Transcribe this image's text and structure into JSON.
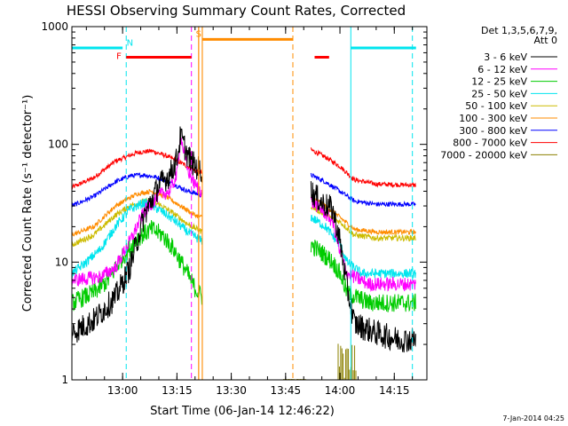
{
  "chart_data": {
    "type": "line",
    "title": "HESSI Observing Summary Count Rates, Corrected",
    "xlabel": "Start Time (06-Jan-14 12:46:22)",
    "ylabel": "Corrected Count Rate (s⁻¹ detector⁻¹)",
    "x_unit": "minutes",
    "x_range": [
      "12:46",
      "14:24"
    ],
    "x_ticks": [
      "13:00",
      "13:15",
      "13:30",
      "13:45",
      "14:00",
      "14:15"
    ],
    "y_scale": "log",
    "ylim": [
      1,
      1000
    ],
    "y_ticks": [
      "1",
      "10",
      "100",
      "1000"
    ],
    "legend_header": [
      "Det 1,3,5,6,7,9,",
      "Att 0"
    ],
    "legend_position": "right",
    "timestamp": "7-Jan-2014 04:25",
    "data_gap": [
      "13:22",
      "13:52"
    ],
    "dashed_markers": [
      {
        "time": "13:01",
        "color": "#00e5ee"
      },
      {
        "time": "13:19",
        "color": "#ff00ff"
      },
      {
        "time": "13:47",
        "color": "#ff8c00"
      },
      {
        "time": "14:20",
        "color": "#00e5ee"
      }
    ],
    "solid_markers": [
      {
        "time": "12:46",
        "color": "#00e5ee"
      },
      {
        "time": "13:21",
        "color": "#ff8c00"
      },
      {
        "time": "13:22",
        "color": "#ff8c00"
      },
      {
        "time": "14:03",
        "color": "#00e5ee"
      }
    ],
    "state_bars": [
      {
        "label": "",
        "color": "#00e5ee",
        "y": 660,
        "segments": [
          [
            "12:46",
            "13:00"
          ],
          [
            "14:03",
            "14:21"
          ]
        ]
      },
      {
        "label": "N",
        "label_color": "#00e5ee",
        "label_time": "13:02",
        "label_y": 690,
        "color": "",
        "y": 0,
        "segments": []
      },
      {
        "label": "F",
        "label_color": "#ff0000",
        "label_time": "12:59",
        "label_y": 530,
        "color": "#ff0000",
        "y": 550,
        "segments": [
          [
            "13:01",
            "13:19"
          ],
          [
            "13:53",
            "13:57"
          ]
        ]
      },
      {
        "label": "S",
        "label_color": "#ff8c00",
        "label_time": "13:21",
        "label_y": 820,
        "color": "#ff8c00",
        "y": 780,
        "segments": [
          [
            "13:22",
            "13:47"
          ]
        ]
      }
    ],
    "series": [
      {
        "name": "3 - 6 keV",
        "color": "#000000",
        "noise": 0.22,
        "points": [
          [
            "12:46",
            2.5
          ],
          [
            "12:52",
            3.2
          ],
          [
            "12:58",
            5
          ],
          [
            "13:02",
            9
          ],
          [
            "13:06",
            25
          ],
          [
            "13:10",
            45
          ],
          [
            "13:13",
            55
          ],
          [
            "13:15",
            75
          ],
          [
            "13:16",
            118
          ],
          [
            "13:18",
            80
          ],
          [
            "13:20",
            65
          ],
          [
            "13:22",
            60
          ]
        ],
        "points2": [
          [
            "13:52",
            40
          ],
          [
            "13:55",
            32
          ],
          [
            "13:58",
            28
          ],
          [
            "14:00",
            15
          ],
          [
            "14:02",
            6
          ],
          [
            "14:04",
            3
          ],
          [
            "14:10",
            2.5
          ],
          [
            "14:16",
            2.2
          ],
          [
            "14:21",
            2.2
          ]
        ]
      },
      {
        "name": "6 - 12 keV",
        "color": "#ff00ff",
        "noise": 0.12,
        "points": [
          [
            "12:46",
            7
          ],
          [
            "12:54",
            7.5
          ],
          [
            "12:58",
            9
          ],
          [
            "13:02",
            15
          ],
          [
            "13:06",
            27
          ],
          [
            "13:10",
            37
          ],
          [
            "13:13",
            40
          ],
          [
            "13:15",
            55
          ],
          [
            "13:16",
            118
          ],
          [
            "13:18",
            60
          ],
          [
            "13:20",
            45
          ],
          [
            "13:22",
            40
          ]
        ],
        "points2": [
          [
            "13:52",
            33
          ],
          [
            "13:55",
            28
          ],
          [
            "13:58",
            22
          ],
          [
            "14:00",
            12
          ],
          [
            "14:02",
            8
          ],
          [
            "14:08",
            6.5
          ],
          [
            "14:14",
            6.5
          ],
          [
            "14:21",
            6.5
          ]
        ]
      },
      {
        "name": "12 - 25 keV",
        "color": "#00cc00",
        "noise": 0.16,
        "points": [
          [
            "12:46",
            4.5
          ],
          [
            "12:52",
            5.5
          ],
          [
            "12:56",
            7
          ],
          [
            "13:00",
            11
          ],
          [
            "13:04",
            16
          ],
          [
            "13:08",
            19
          ],
          [
            "13:11",
            17
          ],
          [
            "13:14",
            13
          ],
          [
            "13:17",
            9
          ],
          [
            "13:20",
            6
          ],
          [
            "13:22",
            5
          ]
        ],
        "points2": [
          [
            "13:52",
            14
          ],
          [
            "13:55",
            12
          ],
          [
            "13:58",
            10
          ],
          [
            "14:00",
            8
          ],
          [
            "14:02",
            5.5
          ],
          [
            "14:08",
            4.5
          ],
          [
            "14:21",
            4.5
          ]
        ]
      },
      {
        "name": "25 - 50 keV",
        "color": "#00e5ee",
        "noise": 0.08,
        "points": [
          [
            "12:46",
            8
          ],
          [
            "12:50",
            10
          ],
          [
            "12:54",
            13
          ],
          [
            "12:58",
            20
          ],
          [
            "13:02",
            28
          ],
          [
            "13:06",
            32
          ],
          [
            "13:10",
            28
          ],
          [
            "13:14",
            23
          ],
          [
            "13:18",
            18
          ],
          [
            "13:22",
            15
          ]
        ],
        "points2": [
          [
            "13:52",
            24
          ],
          [
            "13:56",
            20
          ],
          [
            "14:00",
            14
          ],
          [
            "14:02",
            10
          ],
          [
            "14:06",
            8
          ],
          [
            "14:21",
            8
          ]
        ]
      },
      {
        "name": "50 - 100 keV",
        "color": "#ccbb00",
        "noise": 0.05,
        "points": [
          [
            "12:46",
            14
          ],
          [
            "12:52",
            17
          ],
          [
            "12:58",
            25
          ],
          [
            "13:02",
            30
          ],
          [
            "13:06",
            33
          ],
          [
            "13:10",
            31
          ],
          [
            "13:14",
            26
          ],
          [
            "13:18",
            21
          ],
          [
            "13:22",
            18
          ]
        ],
        "points2": [
          [
            "13:52",
            30
          ],
          [
            "13:56",
            25
          ],
          [
            "14:00",
            22
          ],
          [
            "14:04",
            17
          ],
          [
            "14:10",
            16
          ],
          [
            "14:21",
            16
          ]
        ]
      },
      {
        "name": "100 - 300 keV",
        "color": "#ff8c00",
        "noise": 0.04,
        "points": [
          [
            "12:46",
            17
          ],
          [
            "12:52",
            20
          ],
          [
            "12:58",
            30
          ],
          [
            "13:04",
            38
          ],
          [
            "13:08",
            40
          ],
          [
            "13:12",
            36
          ],
          [
            "13:16",
            30
          ],
          [
            "13:20",
            25
          ],
          [
            "13:22",
            24
          ]
        ],
        "points2": [
          [
            "13:52",
            36
          ],
          [
            "13:56",
            30
          ],
          [
            "14:00",
            24
          ],
          [
            "14:04",
            19
          ],
          [
            "14:10",
            18
          ],
          [
            "14:21",
            18
          ]
        ]
      },
      {
        "name": "300 - 800 keV",
        "color": "#0000ff",
        "noise": 0.04,
        "points": [
          [
            "12:46",
            30
          ],
          [
            "12:52",
            36
          ],
          [
            "12:58",
            48
          ],
          [
            "13:02",
            54
          ],
          [
            "13:06",
            55
          ],
          [
            "13:10",
            52
          ],
          [
            "13:14",
            46
          ],
          [
            "13:18",
            40
          ],
          [
            "13:22",
            37
          ]
        ],
        "points2": [
          [
            "13:52",
            55
          ],
          [
            "13:56",
            48
          ],
          [
            "14:00",
            40
          ],
          [
            "14:04",
            33
          ],
          [
            "14:10",
            31
          ],
          [
            "14:21",
            31
          ]
        ]
      },
      {
        "name": "800 - 7000 keV",
        "color": "#ff0000",
        "noise": 0.04,
        "points": [
          [
            "12:46",
            43
          ],
          [
            "12:52",
            52
          ],
          [
            "12:58",
            72
          ],
          [
            "13:04",
            85
          ],
          [
            "13:08",
            88
          ],
          [
            "13:12",
            80
          ],
          [
            "13:16",
            70
          ],
          [
            "13:20",
            60
          ],
          [
            "13:22",
            57
          ]
        ],
        "points2": [
          [
            "13:52",
            90
          ],
          [
            "13:56",
            78
          ],
          [
            "14:00",
            65
          ],
          [
            "14:04",
            50
          ],
          [
            "14:10",
            46
          ],
          [
            "14:21",
            45
          ]
        ]
      },
      {
        "name": "7000 - 20000 keV",
        "color": "#8b8000",
        "noise": 0,
        "points": [],
        "points2": []
      }
    ]
  }
}
